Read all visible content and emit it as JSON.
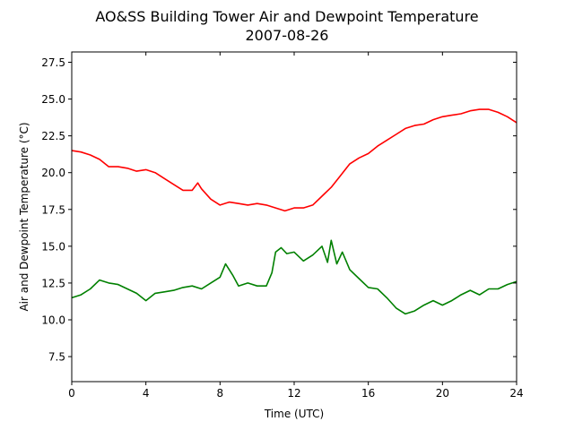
{
  "chart_data": {
    "type": "line",
    "title": "AO&SS Building Tower Air and Dewpoint Temperature",
    "subtitle": "2007-08-26",
    "xlabel": "Time (UTC)",
    "ylabel": "Air and Dewpoint Temperature (°C)",
    "xlim": [
      0,
      24
    ],
    "ylim": [
      5.8,
      28.2
    ],
    "xticks": [
      "0",
      "4",
      "8",
      "12",
      "16",
      "20",
      "24"
    ],
    "yticks": [
      "7.5",
      "10.0",
      "12.5",
      "15.0",
      "17.5",
      "20.0",
      "22.5",
      "25.0",
      "27.5"
    ],
    "grid": false,
    "legend": "none",
    "series": [
      {
        "color": "#ff0000",
        "x": [
          0,
          0.5,
          1.0,
          1.5,
          2.0,
          2.5,
          3.0,
          3.5,
          4.0,
          4.5,
          5.0,
          5.5,
          6.0,
          6.5,
          6.8,
          7.0,
          7.5,
          8.0,
          8.5,
          9.0,
          9.5,
          10.0,
          10.5,
          11.0,
          11.5,
          12.0,
          12.5,
          13.0,
          13.5,
          14.0,
          14.5,
          15.0,
          15.5,
          16.0,
          16.5,
          17.0,
          17.5,
          18.0,
          18.5,
          19.0,
          19.5,
          20.0,
          20.5,
          21.0,
          21.5,
          22.0,
          22.5,
          23.0,
          23.5,
          24.0
        ],
        "y": [
          21.5,
          21.4,
          21.2,
          20.9,
          20.4,
          20.4,
          20.3,
          20.1,
          20.2,
          20.0,
          19.6,
          19.2,
          18.8,
          18.8,
          19.3,
          18.9,
          18.2,
          17.8,
          18.0,
          17.9,
          17.8,
          17.9,
          17.8,
          17.6,
          17.4,
          17.6,
          17.6,
          17.8,
          18.4,
          19.0,
          19.8,
          20.6,
          21.0,
          21.3,
          21.8,
          22.2,
          22.6,
          23.0,
          23.2,
          23.3,
          23.6,
          23.8,
          23.9,
          24.0,
          24.2,
          24.3,
          24.3,
          24.1,
          23.8,
          23.4
        ]
      },
      {
        "color": "#008000",
        "x": [
          0,
          0.5,
          1.0,
          1.5,
          2.0,
          2.5,
          3.0,
          3.5,
          4.0,
          4.5,
          5.0,
          5.5,
          6.0,
          6.5,
          7.0,
          7.5,
          8.0,
          8.3,
          8.7,
          9.0,
          9.5,
          10.0,
          10.5,
          10.8,
          11.0,
          11.3,
          11.6,
          12.0,
          12.5,
          13.0,
          13.5,
          13.8,
          14.0,
          14.3,
          14.6,
          15.0,
          15.5,
          16.0,
          16.5,
          17.0,
          17.5,
          18.0,
          18.5,
          19.0,
          19.5,
          20.0,
          20.5,
          21.0,
          21.5,
          22.0,
          22.5,
          23.0,
          23.5,
          24.0
        ],
        "y": [
          11.5,
          11.7,
          12.1,
          12.7,
          12.5,
          12.4,
          12.1,
          11.8,
          11.3,
          11.8,
          11.9,
          12.0,
          12.2,
          12.3,
          12.1,
          12.5,
          12.9,
          13.8,
          13.0,
          12.3,
          12.5,
          12.3,
          12.3,
          13.2,
          14.6,
          14.9,
          14.5,
          14.6,
          14.0,
          14.4,
          15.0,
          13.9,
          15.4,
          13.8,
          14.6,
          13.4,
          12.8,
          12.2,
          12.1,
          11.5,
          10.8,
          10.4,
          10.6,
          11.0,
          11.3,
          11.0,
          11.3,
          11.7,
          12.0,
          11.7,
          12.1,
          12.1,
          12.4,
          12.6
        ]
      }
    ]
  }
}
